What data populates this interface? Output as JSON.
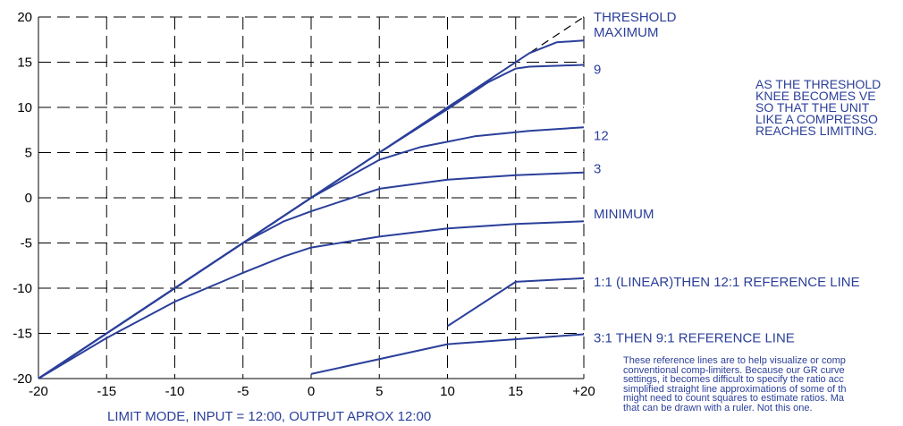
{
  "chart_data": {
    "type": "line",
    "xlim": [
      -20,
      20
    ],
    "ylim": [
      -20,
      20
    ],
    "grid": true,
    "x_ticks": [
      -20,
      -15,
      -10,
      -5,
      0,
      5,
      10,
      15,
      20
    ],
    "x_tick_labels": [
      "-20",
      "-15",
      "-10",
      "-5",
      "0",
      "5",
      "10",
      "15",
      "+20"
    ],
    "y_ticks": [
      -20,
      -15,
      -10,
      -5,
      0,
      5,
      10,
      15,
      20
    ],
    "y_tick_labels": [
      "-20",
      "-15",
      "-10",
      "-5",
      "0",
      "5",
      "10",
      "15",
      "20"
    ],
    "series": [
      {
        "name": "THRESHOLD",
        "style": "dashed",
        "color": "#000000",
        "x": [
          -20,
          20
        ],
        "y": [
          -20,
          20
        ]
      },
      {
        "name": "MAXIMUM",
        "color": "#2b3f9a",
        "x": [
          -20,
          -10,
          0,
          10,
          14,
          16,
          18,
          20
        ],
        "y": [
          -20,
          -10,
          0,
          10,
          14,
          16,
          17.2,
          17.4
        ]
      },
      {
        "name": "9",
        "color": "#2b3f9a",
        "x": [
          -20,
          -10,
          0,
          5,
          10,
          13,
          15,
          16,
          18,
          20
        ],
        "y": [
          -20,
          -10,
          0,
          5,
          9.8,
          12.8,
          14.3,
          14.5,
          14.6,
          14.7
        ]
      },
      {
        "name": "12",
        "color": "#2b3f9a",
        "x": [
          -20,
          -10,
          -5,
          0,
          5,
          8,
          10,
          12,
          14,
          16,
          18,
          20
        ],
        "y": [
          -20,
          -10,
          -5,
          0,
          4.2,
          5.6,
          6.2,
          6.8,
          7.1,
          7.4,
          7.6,
          7.8
        ]
      },
      {
        "name": "3",
        "color": "#2b3f9a",
        "x": [
          -20,
          -10,
          -5,
          -2,
          0,
          5,
          10,
          15,
          20
        ],
        "y": [
          -20,
          -10,
          -5,
          -2.6,
          -1.5,
          1.0,
          2.0,
          2.5,
          2.8
        ]
      },
      {
        "name": "MINIMUM",
        "color": "#2b3f9a",
        "x": [
          -20,
          -15,
          -10,
          -5,
          -2,
          0,
          5,
          10,
          15,
          20
        ],
        "y": [
          -20,
          -15.5,
          -11.5,
          -8.3,
          -6.5,
          -5.5,
          -4.3,
          -3.4,
          -2.9,
          -2.6
        ]
      },
      {
        "name": "1:1 (LINEAR)THEN 12:1 REFERENCE LINE",
        "color": "#2b3f9a",
        "x": [
          10,
          15,
          20
        ],
        "y": [
          -14.2,
          -9.3,
          -8.9
        ]
      },
      {
        "name": "3:1 THEN 9:1 REFERENCE LINE",
        "color": "#2b3f9a",
        "x": [
          0,
          10,
          20
        ],
        "y": [
          -19.5,
          -16.2,
          -15.1
        ]
      }
    ],
    "curve_labels": [
      {
        "text": "THRESHOLD",
        "y": 20.0
      },
      {
        "text": "MAXIMUM",
        "y": 18.3
      },
      {
        "text": "9",
        "y": 14.2
      },
      {
        "text": "12",
        "y": 6.9
      },
      {
        "text": "3",
        "y": 3.2
      },
      {
        "text": "MINIMUM",
        "y": -1.8
      },
      {
        "text": "1:1 (LINEAR)THEN 12:1 REFERENCE LINE",
        "y": -9.3
      },
      {
        "text": "3:1 THEN 9:1 REFERENCE LINE",
        "y": -15.5
      }
    ],
    "caption": "LIMIT MODE, INPUT = 12:00, OUTPUT APROX 12:00"
  },
  "notes": {
    "right_note_lines": [
      "AS THE THRESHOLD",
      "KNEE BECOMES VE",
      "SO THAT THE UNIT",
      "LIKE A COMPRESSO",
      "REACHES LIMITING."
    ],
    "bottom_note_lines": [
      "These reference lines are to help visualize or comp",
      "conventional comp-limiters. Because our GR curve",
      "settings, it becomes difficult to specify the ratio acc",
      "simplified straight line approximations of some of th",
      "might need to count squares to estimate ratios. Ma",
      "that can be drawn with a ruler. Not this one."
    ]
  },
  "colors": {
    "curve": "#2b3f9a",
    "grid": "#000000",
    "threshold": "#000000"
  }
}
